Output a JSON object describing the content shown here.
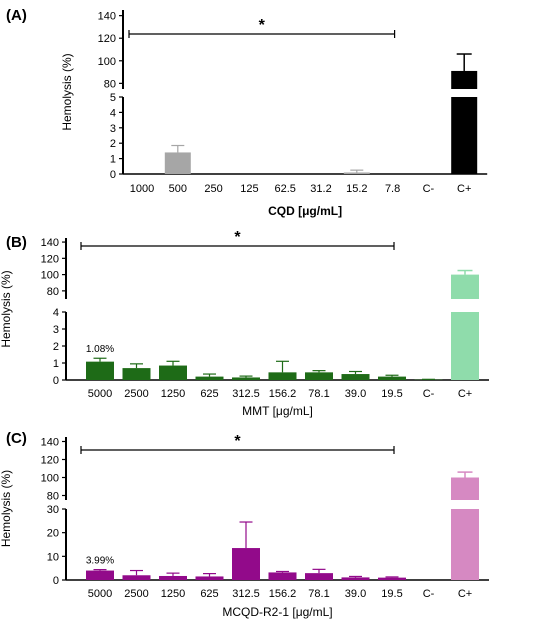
{
  "chart_data": [
    {
      "type": "bar",
      "panel": "(A)",
      "categories": [
        "1000",
        "500",
        "250",
        "125",
        "62.5",
        "31.2",
        "15.2",
        "7.8",
        "C-",
        "C+"
      ],
      "values": [
        0,
        1.4,
        0,
        0,
        0,
        0,
        0.1,
        0,
        0,
        91
      ],
      "errors": [
        0,
        0.45,
        0,
        0,
        0,
        0,
        0.15,
        0,
        0,
        15
      ],
      "colors": [
        "#a6a6a6",
        "#a6a6a6",
        "#a6a6a6",
        "#a6a6a6",
        "#a6a6a6",
        "#a6a6a6",
        "#a6a6a6",
        "#a6a6a6",
        "#a6a6a6",
        "#000000"
      ],
      "xlabel": "CQD [μg/mL]",
      "ylabel": "Hemolysis (%)",
      "ylim_lower": [
        0,
        5
      ],
      "yticks_lower": [
        "0",
        "1",
        "2",
        "3",
        "4",
        "5"
      ],
      "ylim_upper": [
        75,
        145
      ],
      "yticks_upper": [
        "80",
        "100",
        "120",
        "140"
      ],
      "significance": {
        "label": "*",
        "from": "1000",
        "to": "7.8"
      },
      "annotation": {
        "text": "",
        "category": ""
      }
    },
    {
      "type": "bar",
      "panel": "(B)",
      "categories": [
        "5000",
        "2500",
        "1250",
        "625",
        "312.5",
        "156.2",
        "78.1",
        "39.0",
        "19.5",
        "C-",
        "C+"
      ],
      "values": [
        1.08,
        0.7,
        0.85,
        0.2,
        0.15,
        0.45,
        0.45,
        0.35,
        0.2,
        0.02,
        100
      ],
      "errors": [
        0.2,
        0.25,
        0.25,
        0.15,
        0.08,
        0.65,
        0.1,
        0.15,
        0.08,
        0.02,
        5
      ],
      "colors": [
        "#1e6b17",
        "#1e6b17",
        "#1e6b17",
        "#1e6b17",
        "#1e6b17",
        "#1e6b17",
        "#1e6b17",
        "#1e6b17",
        "#1e6b17",
        "#1e6b17",
        "#8fdcab"
      ],
      "xlabel": "MMT [μg/mL]",
      "ylabel": "Hemolysis (%)",
      "ylim_lower": [
        0,
        4
      ],
      "yticks_lower": [
        "0",
        "1",
        "2",
        "3",
        "4"
      ],
      "ylim_upper": [
        70,
        145
      ],
      "yticks_upper": [
        "80",
        "100",
        "120",
        "140"
      ],
      "significance": {
        "label": "*",
        "from": "5000",
        "to": "19.5"
      },
      "annotation": {
        "text": "1.08%",
        "category": "5000"
      }
    },
    {
      "type": "bar",
      "panel": "(C)",
      "categories": [
        "5000",
        "2500",
        "1250",
        "625",
        "312.5",
        "156.2",
        "78.1",
        "39.0",
        "19.5",
        "C-",
        "C+"
      ],
      "values": [
        3.99,
        2.0,
        1.7,
        1.5,
        13.5,
        3.2,
        2.9,
        1.1,
        1.0,
        0,
        100
      ],
      "errors": [
        0.4,
        2.0,
        1.2,
        1.2,
        11.0,
        0.4,
        1.6,
        0.4,
        0.3,
        0,
        6
      ],
      "colors": [
        "#920a8a",
        "#920a8a",
        "#920a8a",
        "#920a8a",
        "#920a8a",
        "#920a8a",
        "#920a8a",
        "#920a8a",
        "#920a8a",
        "#920a8a",
        "#d689c2"
      ],
      "xlabel": "MCQD-R2-1 [μg/mL]",
      "ylabel": "Hemolysis (%)",
      "ylim_lower": [
        0,
        30
      ],
      "yticks_lower": [
        "0",
        "10",
        "20",
        "30"
      ],
      "ylim_upper": [
        75,
        145
      ],
      "yticks_upper": [
        "80",
        "100",
        "120",
        "140"
      ],
      "significance": {
        "label": "*",
        "from": "5000",
        "to": "19.5"
      },
      "annotation": {
        "text": "3.99%",
        "category": "5000"
      }
    }
  ]
}
